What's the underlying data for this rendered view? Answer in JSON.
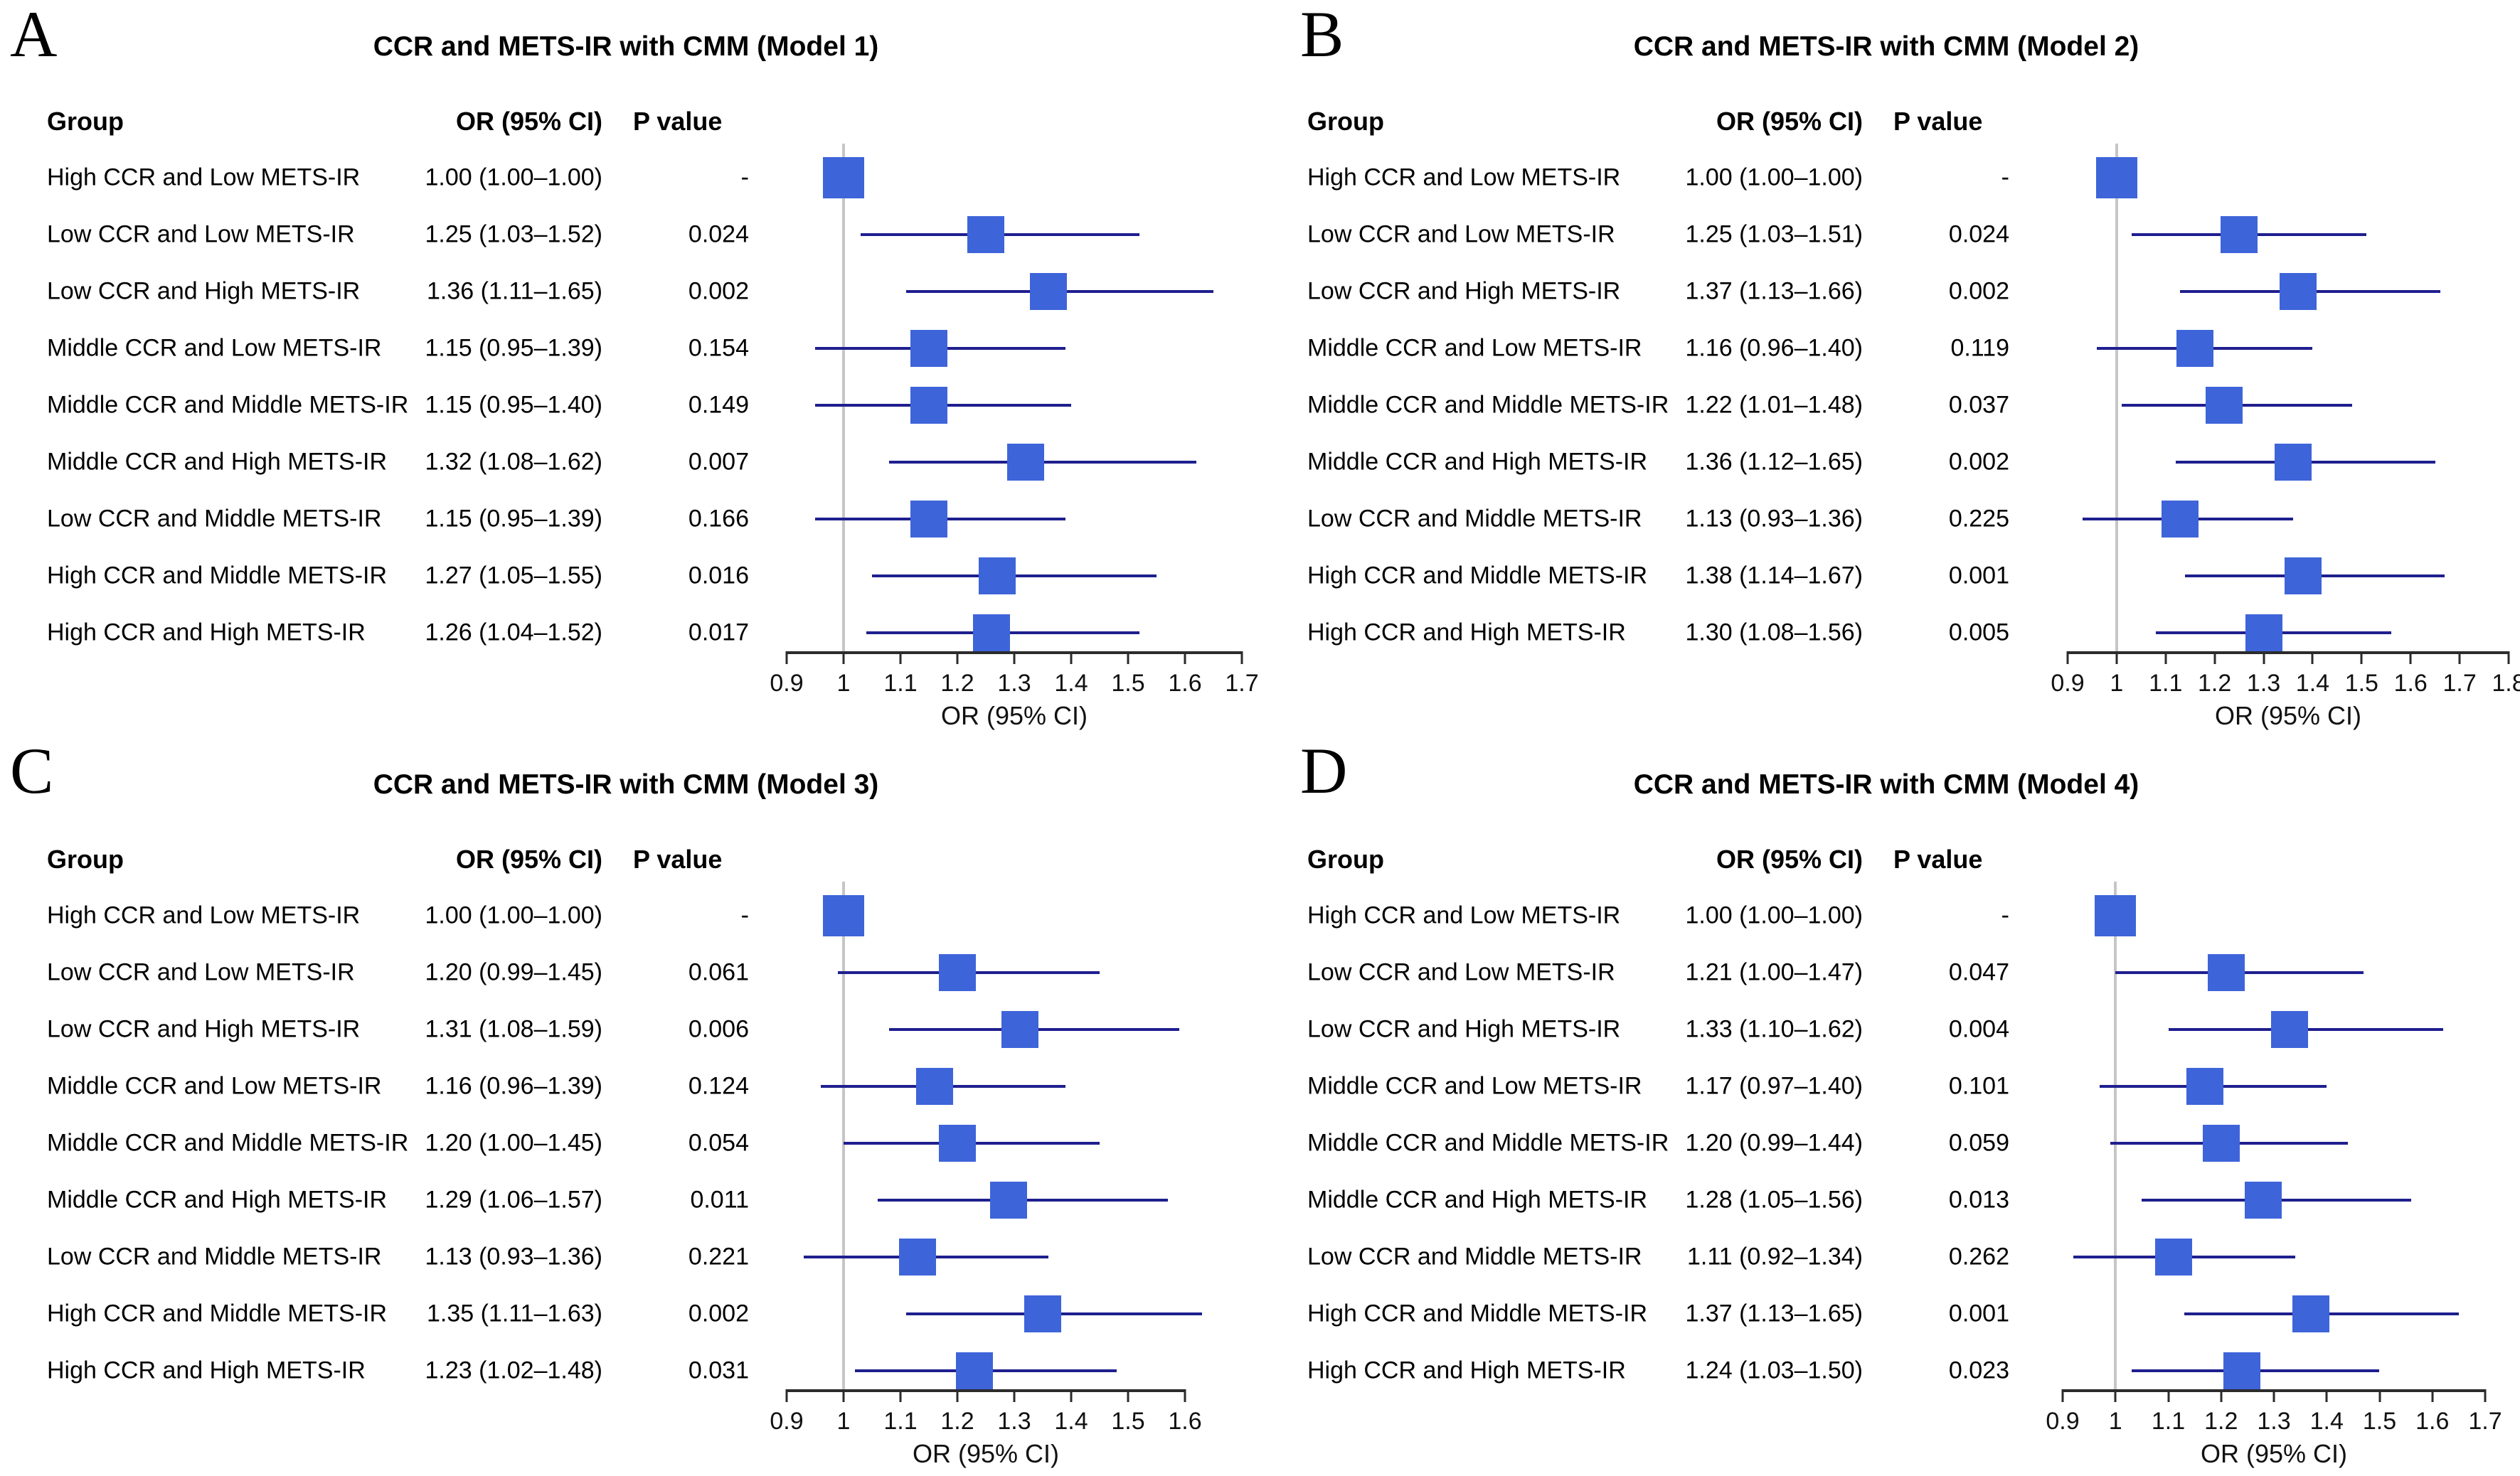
{
  "figure": {
    "column_headers": {
      "group": "Group",
      "or_ci": "OR (95% CI)",
      "p_value": "P value"
    },
    "colors": {
      "square_fill": "#3E64D9",
      "ci_line": "#1F1F8F",
      "reference_line": "#C6C6C6",
      "axis": "#2B2B2B",
      "text": "#000000"
    }
  },
  "chart_data": [
    {
      "type": "scatter",
      "subtype": "forest-plot",
      "panel_letter": "A",
      "title": "CCR and METS-IR with CMM (Model 1)",
      "xlabel": "OR (95% CI)",
      "xlim": [
        0.9,
        1.7
      ],
      "xticks": [
        0.9,
        1,
        1.1,
        1.2,
        1.3,
        1.4,
        1.5,
        1.6,
        1.7
      ],
      "xtick_labels": [
        "0.9",
        "1",
        "1.1",
        "1.2",
        "1.3",
        "1.4",
        "1.5",
        "1.6",
        "1.7"
      ],
      "reference_line_x": 1,
      "grid": false,
      "rows": [
        {
          "group": "High CCR and Low METS-IR",
          "or": 1.0,
          "ci_low": 1.0,
          "ci_high": 1.0,
          "or_ci_label": "1.00 (1.00–1.00)",
          "p_label": "-"
        },
        {
          "group": "Low CCR and Low METS-IR",
          "or": 1.25,
          "ci_low": 1.03,
          "ci_high": 1.52,
          "or_ci_label": "1.25 (1.03–1.52)",
          "p_label": "0.024"
        },
        {
          "group": "Low CCR and High METS-IR",
          "or": 1.36,
          "ci_low": 1.11,
          "ci_high": 1.65,
          "or_ci_label": "1.36 (1.11–1.65)",
          "p_label": "0.002"
        },
        {
          "group": "Middle CCR and Low METS-IR",
          "or": 1.15,
          "ci_low": 0.95,
          "ci_high": 1.39,
          "or_ci_label": "1.15 (0.95–1.39)",
          "p_label": "0.154"
        },
        {
          "group": "Middle CCR and Middle METS-IR",
          "or": 1.15,
          "ci_low": 0.95,
          "ci_high": 1.4,
          "or_ci_label": "1.15 (0.95–1.40)",
          "p_label": "0.149"
        },
        {
          "group": "Middle CCR and High METS-IR",
          "or": 1.32,
          "ci_low": 1.08,
          "ci_high": 1.62,
          "or_ci_label": "1.32 (1.08–1.62)",
          "p_label": "0.007"
        },
        {
          "group": "Low CCR and Middle METS-IR",
          "or": 1.15,
          "ci_low": 0.95,
          "ci_high": 1.39,
          "or_ci_label": "1.15 (0.95–1.39)",
          "p_label": "0.166"
        },
        {
          "group": "High CCR and Middle METS-IR",
          "or": 1.27,
          "ci_low": 1.05,
          "ci_high": 1.55,
          "or_ci_label": "1.27 (1.05–1.55)",
          "p_label": "0.016"
        },
        {
          "group": "High CCR and High METS-IR",
          "or": 1.26,
          "ci_low": 1.04,
          "ci_high": 1.52,
          "or_ci_label": "1.26 (1.04–1.52)",
          "p_label": "0.017"
        }
      ]
    },
    {
      "type": "scatter",
      "subtype": "forest-plot",
      "panel_letter": "B",
      "title": "CCR and METS-IR with CMM (Model 2)",
      "xlabel": "OR (95% CI)",
      "xlim": [
        0.9,
        1.8
      ],
      "xticks": [
        0.9,
        1,
        1.1,
        1.2,
        1.3,
        1.4,
        1.5,
        1.6,
        1.7,
        1.8
      ],
      "xtick_labels": [
        "0.9",
        "1",
        "1.1",
        "1.2",
        "1.3",
        "1.4",
        "1.5",
        "1.6",
        "1.7",
        "1.8"
      ],
      "reference_line_x": 1,
      "grid": false,
      "rows": [
        {
          "group": "High CCR and Low METS-IR",
          "or": 1.0,
          "ci_low": 1.0,
          "ci_high": 1.0,
          "or_ci_label": "1.00 (1.00–1.00)",
          "p_label": "-"
        },
        {
          "group": "Low CCR and Low METS-IR",
          "or": 1.25,
          "ci_low": 1.03,
          "ci_high": 1.51,
          "or_ci_label": "1.25 (1.03–1.51)",
          "p_label": "0.024"
        },
        {
          "group": "Low CCR and High METS-IR",
          "or": 1.37,
          "ci_low": 1.13,
          "ci_high": 1.66,
          "or_ci_label": "1.37 (1.13–1.66)",
          "p_label": "0.002"
        },
        {
          "group": "Middle CCR and Low METS-IR",
          "or": 1.16,
          "ci_low": 0.96,
          "ci_high": 1.4,
          "or_ci_label": "1.16 (0.96–1.40)",
          "p_label": "0.119"
        },
        {
          "group": "Middle CCR and Middle METS-IR",
          "or": 1.22,
          "ci_low": 1.01,
          "ci_high": 1.48,
          "or_ci_label": "1.22 (1.01–1.48)",
          "p_label": "0.037"
        },
        {
          "group": "Middle CCR and High METS-IR",
          "or": 1.36,
          "ci_low": 1.12,
          "ci_high": 1.65,
          "or_ci_label": "1.36 (1.12–1.65)",
          "p_label": "0.002"
        },
        {
          "group": "Low CCR and Middle METS-IR",
          "or": 1.13,
          "ci_low": 0.93,
          "ci_high": 1.36,
          "or_ci_label": "1.13 (0.93–1.36)",
          "p_label": "0.225"
        },
        {
          "group": "High CCR and Middle METS-IR",
          "or": 1.38,
          "ci_low": 1.14,
          "ci_high": 1.67,
          "or_ci_label": "1.38 (1.14–1.67)",
          "p_label": "0.001"
        },
        {
          "group": "High CCR and High METS-IR",
          "or": 1.3,
          "ci_low": 1.08,
          "ci_high": 1.56,
          "or_ci_label": "1.30 (1.08–1.56)",
          "p_label": "0.005"
        }
      ]
    },
    {
      "type": "scatter",
      "subtype": "forest-plot",
      "panel_letter": "C",
      "title": "CCR and METS-IR with CMM (Model 3)",
      "xlabel": "OR (95% CI)",
      "xlim": [
        0.9,
        1.6
      ],
      "xticks": [
        0.9,
        1,
        1.1,
        1.2,
        1.3,
        1.4,
        1.5,
        1.6
      ],
      "xtick_labels": [
        "0.9",
        "1",
        "1.1",
        "1.2",
        "1.3",
        "1.4",
        "1.5",
        "1.6"
      ],
      "reference_line_x": 1,
      "grid": false,
      "rows": [
        {
          "group": "High CCR and Low METS-IR",
          "or": 1.0,
          "ci_low": 1.0,
          "ci_high": 1.0,
          "or_ci_label": "1.00 (1.00–1.00)",
          "p_label": "-"
        },
        {
          "group": "Low CCR and Low METS-IR",
          "or": 1.2,
          "ci_low": 0.99,
          "ci_high": 1.45,
          "or_ci_label": "1.20 (0.99–1.45)",
          "p_label": "0.061"
        },
        {
          "group": "Low CCR and High METS-IR",
          "or": 1.31,
          "ci_low": 1.08,
          "ci_high": 1.59,
          "or_ci_label": "1.31 (1.08–1.59)",
          "p_label": "0.006"
        },
        {
          "group": "Middle CCR and Low METS-IR",
          "or": 1.16,
          "ci_low": 0.96,
          "ci_high": 1.39,
          "or_ci_label": "1.16 (0.96–1.39)",
          "p_label": "0.124"
        },
        {
          "group": "Middle CCR and Middle METS-IR",
          "or": 1.2,
          "ci_low": 1.0,
          "ci_high": 1.45,
          "or_ci_label": "1.20 (1.00–1.45)",
          "p_label": "0.054"
        },
        {
          "group": "Middle CCR and High METS-IR",
          "or": 1.29,
          "ci_low": 1.06,
          "ci_high": 1.57,
          "or_ci_label": "1.29 (1.06–1.57)",
          "p_label": "0.011"
        },
        {
          "group": "Low CCR and Middle METS-IR",
          "or": 1.13,
          "ci_low": 0.93,
          "ci_high": 1.36,
          "or_ci_label": "1.13 (0.93–1.36)",
          "p_label": "0.221"
        },
        {
          "group": "High CCR and Middle METS-IR",
          "or": 1.35,
          "ci_low": 1.11,
          "ci_high": 1.63,
          "or_ci_label": "1.35 (1.11–1.63)",
          "p_label": "0.002"
        },
        {
          "group": "High CCR and High METS-IR",
          "or": 1.23,
          "ci_low": 1.02,
          "ci_high": 1.48,
          "or_ci_label": "1.23 (1.02–1.48)",
          "p_label": "0.031"
        }
      ]
    },
    {
      "type": "scatter",
      "subtype": "forest-plot",
      "panel_letter": "D",
      "title": "CCR and METS-IR with CMM (Model 4)",
      "xlabel": "OR (95% CI)",
      "xlim": [
        0.9,
        1.7
      ],
      "xticks": [
        0.9,
        1,
        1.1,
        1.2,
        1.3,
        1.4,
        1.5,
        1.6,
        1.7
      ],
      "xtick_labels": [
        "0.9",
        "1",
        "1.1",
        "1.2",
        "1.3",
        "1.4",
        "1.5",
        "1.6",
        "1.7"
      ],
      "reference_line_x": 1,
      "grid": false,
      "rows": [
        {
          "group": "High CCR and Low METS-IR",
          "or": 1.0,
          "ci_low": 1.0,
          "ci_high": 1.0,
          "or_ci_label": "1.00 (1.00–1.00)",
          "p_label": "-"
        },
        {
          "group": "Low CCR and Low METS-IR",
          "or": 1.21,
          "ci_low": 1.0,
          "ci_high": 1.47,
          "or_ci_label": "1.21 (1.00–1.47)",
          "p_label": "0.047"
        },
        {
          "group": "Low CCR and High METS-IR",
          "or": 1.33,
          "ci_low": 1.1,
          "ci_high": 1.62,
          "or_ci_label": "1.33 (1.10–1.62)",
          "p_label": "0.004"
        },
        {
          "group": "Middle CCR and Low METS-IR",
          "or": 1.17,
          "ci_low": 0.97,
          "ci_high": 1.4,
          "or_ci_label": "1.17 (0.97–1.40)",
          "p_label": "0.101"
        },
        {
          "group": "Middle CCR and Middle METS-IR",
          "or": 1.2,
          "ci_low": 0.99,
          "ci_high": 1.44,
          "or_ci_label": "1.20 (0.99–1.44)",
          "p_label": "0.059"
        },
        {
          "group": "Middle CCR and High METS-IR",
          "or": 1.28,
          "ci_low": 1.05,
          "ci_high": 1.56,
          "or_ci_label": "1.28 (1.05–1.56)",
          "p_label": "0.013"
        },
        {
          "group": "Low CCR and Middle METS-IR",
          "or": 1.11,
          "ci_low": 0.92,
          "ci_high": 1.34,
          "or_ci_label": "1.11 (0.92–1.34)",
          "p_label": "0.262"
        },
        {
          "group": "High CCR and Middle METS-IR",
          "or": 1.37,
          "ci_low": 1.13,
          "ci_high": 1.65,
          "or_ci_label": "1.37 (1.13–1.65)",
          "p_label": "0.001"
        },
        {
          "group": "High CCR and High METS-IR",
          "or": 1.24,
          "ci_low": 1.03,
          "ci_high": 1.5,
          "or_ci_label": "1.24 (1.03–1.50)",
          "p_label": "0.023"
        }
      ]
    }
  ]
}
